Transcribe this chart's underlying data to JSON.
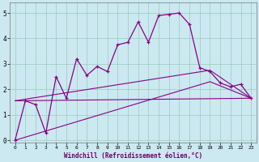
{
  "xlabel": "Windchill (Refroidissement éolien,°C)",
  "bg_color": "#cce8f0",
  "line_color": "#880088",
  "grid_color": "#99ccbb",
  "xlim": [
    -0.5,
    23.5
  ],
  "ylim": [
    -0.1,
    5.4
  ],
  "yticks": [
    0,
    1,
    2,
    3,
    4,
    5
  ],
  "xticks": [
    0,
    1,
    2,
    3,
    4,
    5,
    6,
    7,
    8,
    9,
    10,
    11,
    12,
    13,
    14,
    15,
    16,
    17,
    18,
    19,
    20,
    21,
    22,
    23
  ],
  "line1_x": [
    0,
    1,
    2,
    3,
    4,
    5,
    6,
    7,
    8,
    9,
    10,
    11,
    12,
    13,
    14,
    15,
    16,
    17,
    18,
    19,
    20,
    21,
    22,
    23
  ],
  "line1_y": [
    0.0,
    1.55,
    1.4,
    0.28,
    2.5,
    1.65,
    3.2,
    2.55,
    2.9,
    2.7,
    3.75,
    3.85,
    4.65,
    3.85,
    4.9,
    4.95,
    5.0,
    4.55,
    2.85,
    2.7,
    2.25,
    2.1,
    2.2,
    1.65
  ],
  "line2_x": [
    0,
    23
  ],
  "line2_y": [
    1.55,
    1.65
  ],
  "line3_x": [
    0,
    19,
    23
  ],
  "line3_y": [
    1.55,
    2.75,
    1.65
  ],
  "line4_x": [
    0,
    19,
    23
  ],
  "line4_y": [
    0.0,
    2.3,
    1.65
  ]
}
